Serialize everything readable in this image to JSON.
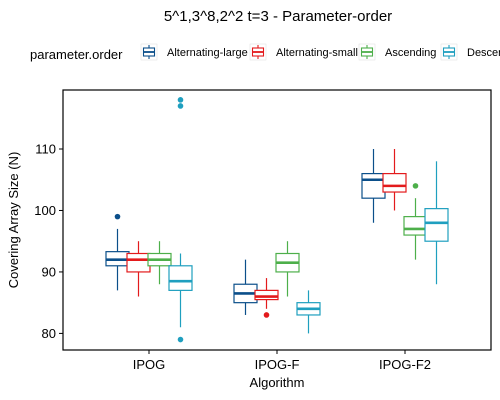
{
  "chart_data": {
    "type": "boxplot",
    "title": "5^1,3^8,2^2 t=3 - Parameter-order",
    "xlabel": "Algorithm",
    "ylabel": "Covering Array Size (N)",
    "ylim": [
      77.3,
      119.6
    ],
    "yticks": [
      80,
      90,
      100,
      110
    ],
    "categories": [
      "IPOG",
      "IPOG-F",
      "IPOG-F2"
    ],
    "legend": {
      "title": "parameter.order",
      "placement": "top",
      "entries": [
        "Alternating-large",
        "Alternating-small",
        "Ascending",
        "Descending"
      ],
      "visible_entries": [
        "Alternating-large",
        "Alternating-small",
        "Ascending",
        "Descer"
      ]
    },
    "grid": false,
    "series": [
      {
        "name": "Alternating-large",
        "color": "#0b4f8a",
        "boxes": [
          {
            "category": "IPOG",
            "lower_whisker": 87,
            "q1": 91,
            "median": 92,
            "q3": 93.3,
            "upper_whisker": 97,
            "outliers": [
              99
            ]
          },
          {
            "category": "IPOG-F",
            "lower_whisker": 83,
            "q1": 85,
            "median": 86.5,
            "q3": 88,
            "upper_whisker": 92,
            "outliers": []
          },
          {
            "category": "IPOG-F2",
            "lower_whisker": 98,
            "q1": 102,
            "median": 105,
            "q3": 106,
            "upper_whisker": 110,
            "outliers": []
          }
        ]
      },
      {
        "name": "Alternating-small",
        "color": "#e31a1c",
        "boxes": [
          {
            "category": "IPOG",
            "lower_whisker": 86,
            "q1": 90,
            "median": 92,
            "q3": 93,
            "upper_whisker": 95,
            "outliers": []
          },
          {
            "category": "IPOG-F",
            "lower_whisker": 84,
            "q1": 85.5,
            "median": 86,
            "q3": 87,
            "upper_whisker": 89,
            "outliers": [
              83
            ]
          },
          {
            "category": "IPOG-F2",
            "lower_whisker": 100,
            "q1": 103,
            "median": 104,
            "q3": 106,
            "upper_whisker": 110,
            "outliers": []
          }
        ]
      },
      {
        "name": "Ascending",
        "color": "#4daf4a",
        "boxes": [
          {
            "category": "IPOG",
            "lower_whisker": 88,
            "q1": 91,
            "median": 92,
            "q3": 93,
            "upper_whisker": 95,
            "outliers": []
          },
          {
            "category": "IPOG-F",
            "lower_whisker": 86,
            "q1": 90,
            "median": 91.5,
            "q3": 93,
            "upper_whisker": 95,
            "outliers": []
          },
          {
            "category": "IPOG-F2",
            "lower_whisker": 92,
            "q1": 96,
            "median": 97,
            "q3": 99,
            "upper_whisker": 102,
            "outliers": [
              104
            ]
          }
        ]
      },
      {
        "name": "Descending",
        "color": "#1f9fbf",
        "boxes": [
          {
            "category": "IPOG",
            "lower_whisker": 81,
            "q1": 87,
            "median": 88.5,
            "q3": 91,
            "upper_whisker": 93,
            "outliers": [
              79,
              117,
              118
            ]
          },
          {
            "category": "IPOG-F",
            "lower_whisker": 80,
            "q1": 83,
            "median": 84,
            "q3": 85,
            "upper_whisker": 87,
            "outliers": []
          },
          {
            "category": "IPOG-F2",
            "lower_whisker": 88,
            "q1": 95,
            "median": 98,
            "q3": 100.3,
            "upper_whisker": 108,
            "outliers": []
          }
        ]
      }
    ]
  }
}
